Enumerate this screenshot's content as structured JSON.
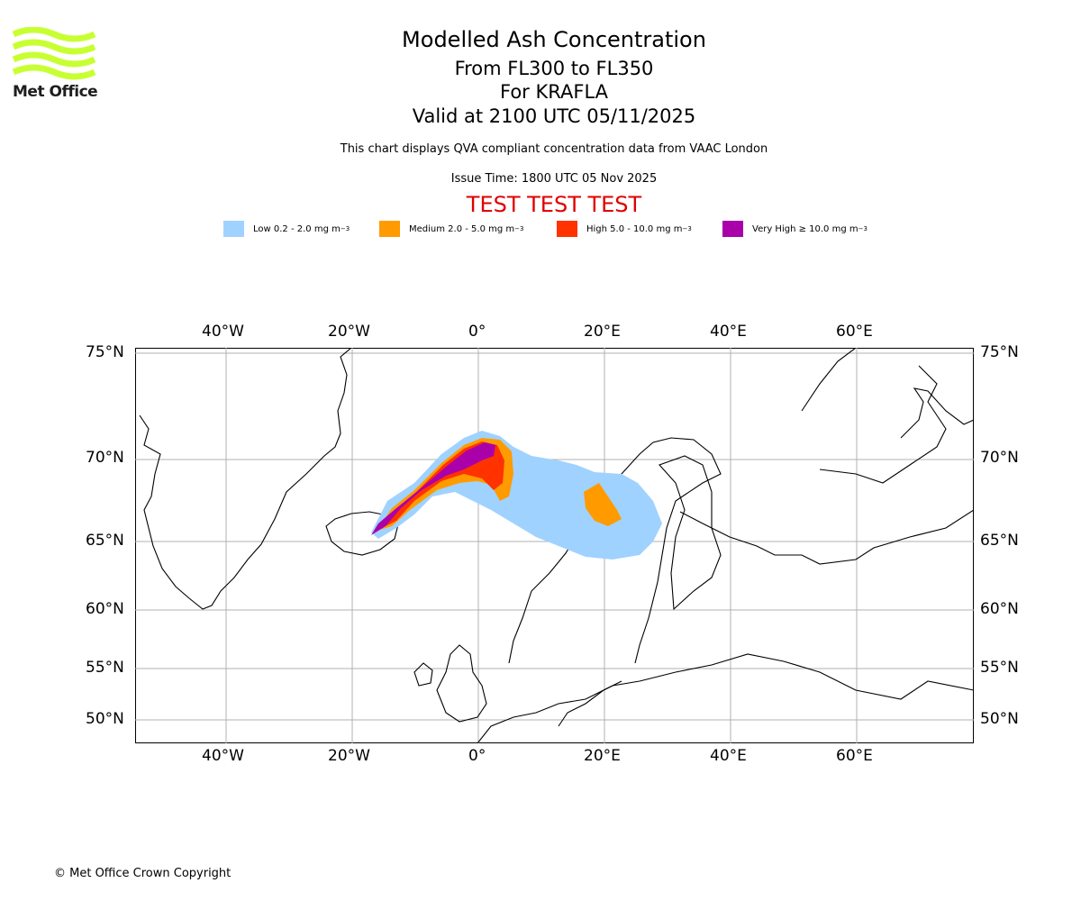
{
  "header": {
    "title": "Modelled Ash Concentration",
    "levels": "From FL300 to FL350",
    "volcano": "For KRAFLA",
    "valid": "Valid at 2100 UTC 05/11/2025",
    "description": "This chart displays QVA compliant concentration data from VAAC London",
    "issue_time": "Issue Time: 1800 UTC 05 Nov 2025",
    "test_banner": "TEST TEST TEST"
  },
  "logo": {
    "text": "Met Office",
    "color": "#c8ff32"
  },
  "legend": [
    {
      "label": "Low 0.2 - 2.0 mg m",
      "sup": "−3",
      "color": "#a0d2ff"
    },
    {
      "label": "Medium 2.0 - 5.0 mg m",
      "sup": "−3",
      "color": "#ff9b00"
    },
    {
      "label": "High 5.0 - 10.0 mg m",
      "sup": "−3",
      "color": "#ff3200"
    },
    {
      "label": "Very High ≥ 10.0 mg m",
      "sup": "−3",
      "color": "#aa00aa"
    }
  ],
  "map": {
    "lon_ticks": [
      "40°W",
      "20°W",
      "0°",
      "20°E",
      "40°E",
      "60°E"
    ],
    "lat_ticks": [
      "75°N",
      "70°N",
      "65°N",
      "60°N",
      "55°N",
      "50°N"
    ]
  },
  "footer": {
    "copyright": "© Met Office Crown Copyright"
  }
}
